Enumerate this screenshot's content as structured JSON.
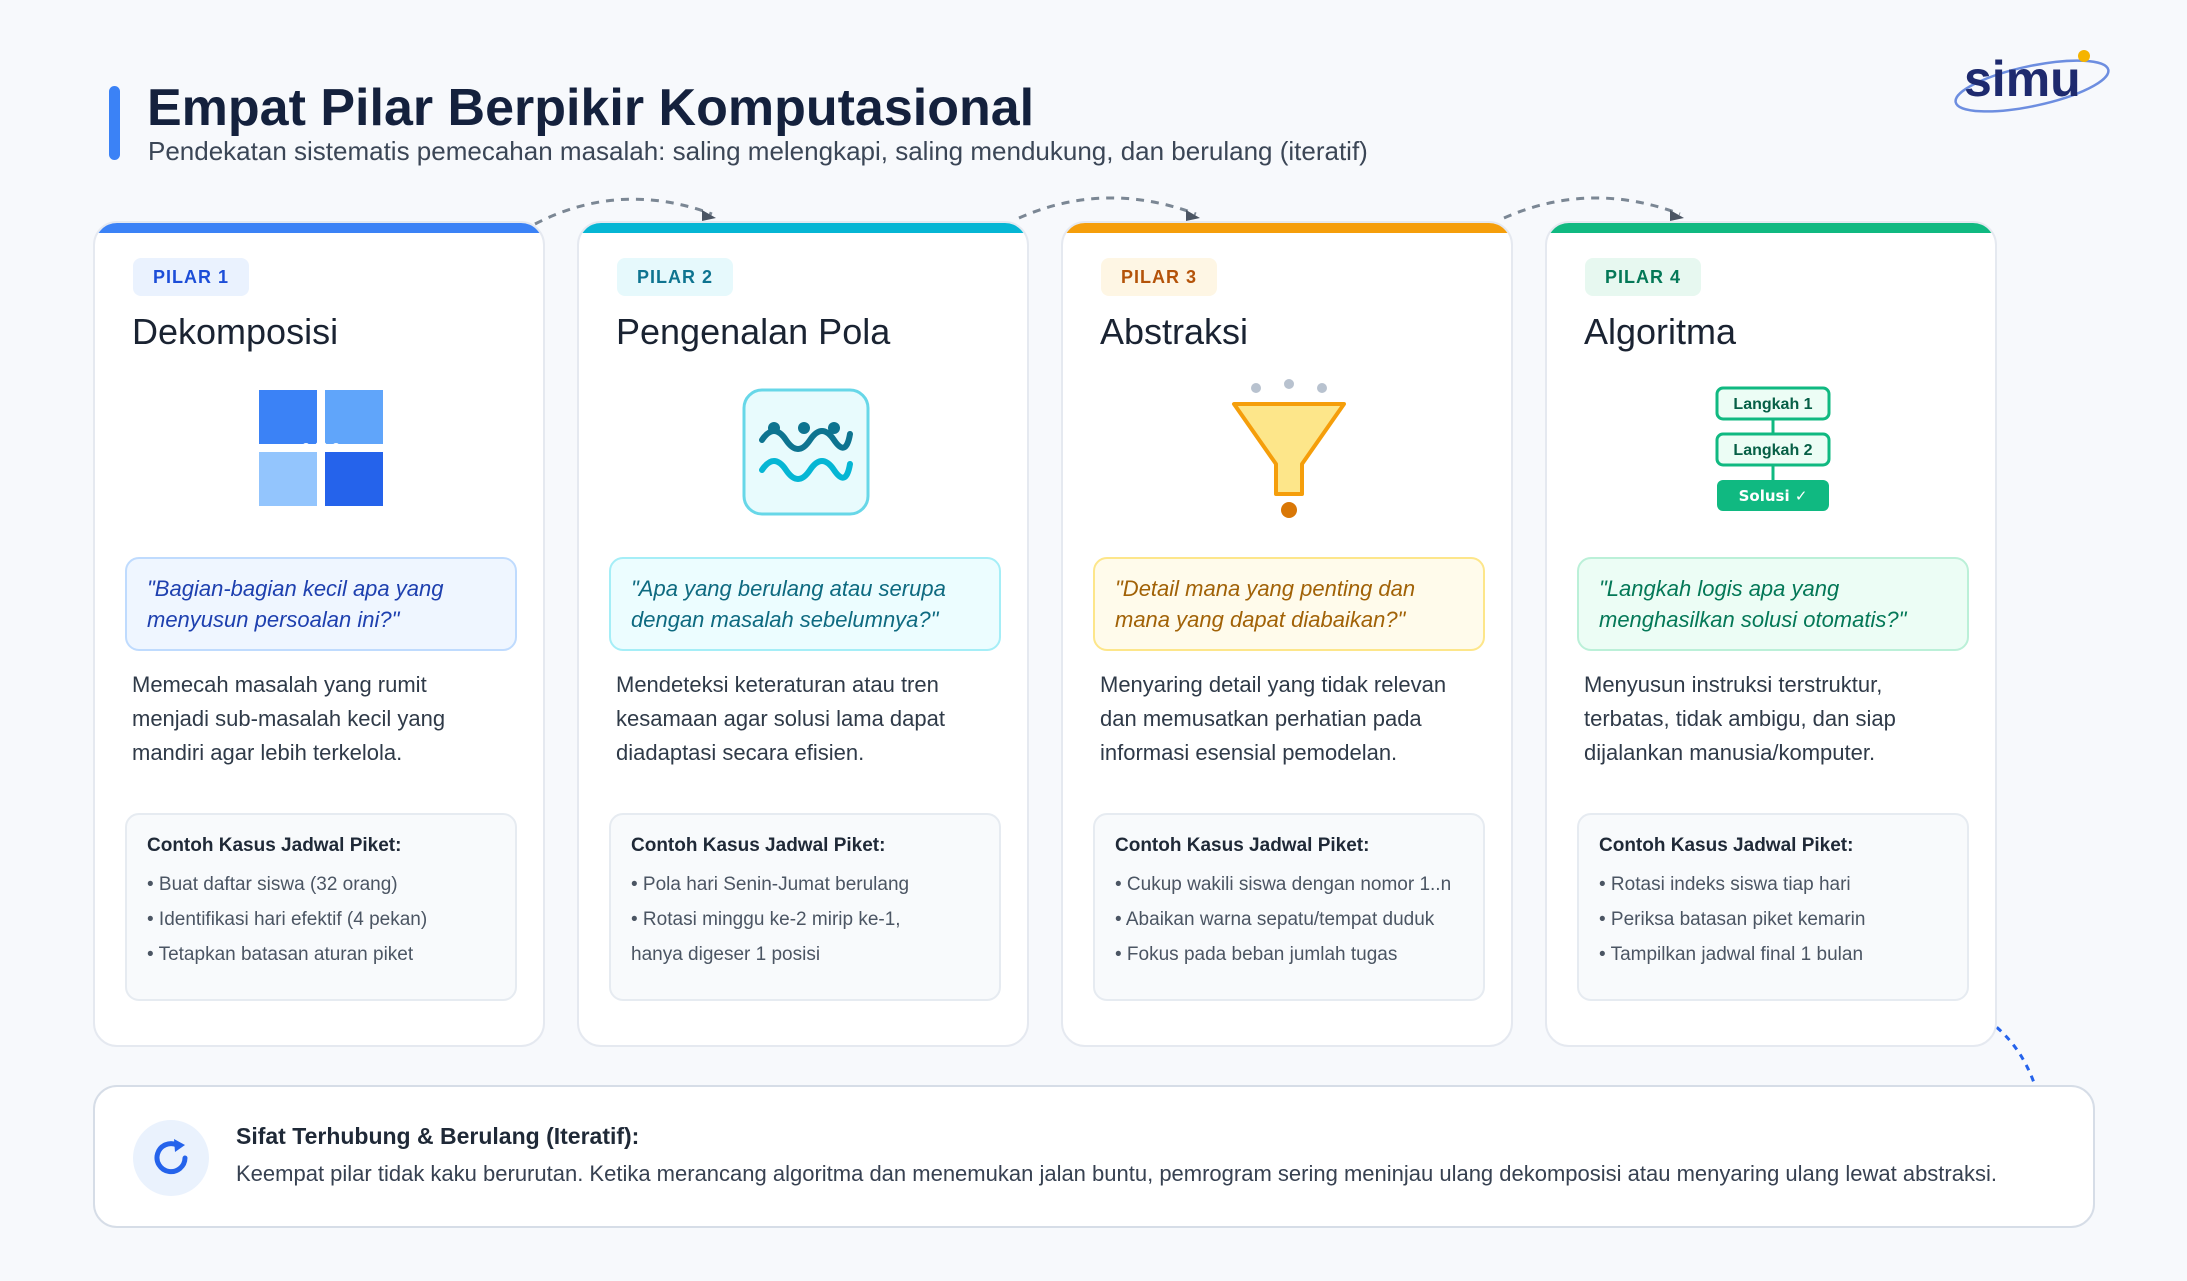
{
  "header": {
    "title": "Empat Pilar Berpikir Komputasional",
    "subtitle": "Pendekatan sistematis pemecahan masalah: saling melengkapi, saling mendukung, dan berulang (iteratif)",
    "logo_text": "simu"
  },
  "pillars": [
    {
      "tag": "PILAR 1",
      "title": "Dekomposisi",
      "icon": "decomposition-blocks-icon",
      "accent": "#3b82f6",
      "quote_lines": [
        "\"Bagian-bagian kecil apa yang",
        "menyusun persoalan ini?\""
      ],
      "desc_lines": [
        "Memecah masalah yang rumit",
        "menjadi sub-masalah kecil yang",
        "mandiri agar lebih terkelola."
      ],
      "example_title": "Contoh Kasus Jadwal Piket:",
      "examples": [
        "• Buat daftar siswa (32 orang)",
        "• Identifikasi hari efektif (4 pekan)",
        "• Tetapkan batasan aturan piket"
      ]
    },
    {
      "tag": "PILAR 2",
      "title": "Pengenalan Pola",
      "icon": "wave-pattern-icon",
      "accent": "#06b6d4",
      "quote_lines": [
        "\"Apa yang berulang atau serupa",
        "dengan masalah sebelumnya?\""
      ],
      "desc_lines": [
        "Mendeteksi keteraturan atau tren",
        "kesamaan agar solusi lama dapat",
        "diadaptasi secara efisien."
      ],
      "example_title": "Contoh Kasus Jadwal Piket:",
      "examples": [
        "• Pola hari Senin-Jumat berulang",
        "• Rotasi minggu ke-2 mirip ke-1,",
        "hanya digeser 1 posisi"
      ]
    },
    {
      "tag": "PILAR 3",
      "title": "Abstraksi",
      "icon": "funnel-icon",
      "accent": "#f59e0b",
      "quote_lines": [
        "\"Detail mana yang penting dan",
        "mana yang dapat diabaikan?\""
      ],
      "desc_lines": [
        "Menyaring detail yang tidak relevan",
        "dan memusatkan perhatian pada",
        "informasi esensial pemodelan."
      ],
      "example_title": "Contoh Kasus Jadwal Piket:",
      "examples": [
        "• Cukup wakili siswa dengan nomor 1..n",
        "• Abaikan warna sepatu/tempat duduk",
        "• Fokus pada beban jumlah tugas"
      ]
    },
    {
      "tag": "PILAR 4",
      "title": "Algoritma",
      "icon": "steps-flow-icon",
      "accent": "#10b981",
      "quote_lines": [
        "\"Langkah logis apa yang",
        "menghasilkan solusi otomatis?\""
      ],
      "desc_lines": [
        "Menyusun instruksi terstruktur,",
        "terbatas, tidak ambigu, dan siap",
        "dijalankan manusia/komputer."
      ],
      "example_title": "Contoh Kasus Jadwal Piket:",
      "examples": [
        "• Rotasi indeks siswa tiap hari",
        "• Periksa batasan piket kemarin",
        "• Tampilkan jadwal final 1 bulan"
      ],
      "steps": [
        "Langkah 1",
        "Langkah 2",
        "Solusi ✓"
      ]
    }
  ],
  "footer": {
    "icon": "cycle-icon",
    "title": "Sifat Terhubung & Berulang (Iteratif):",
    "text": "Keempat pilar tidak kaku berurutan. Ketika merancang algoritma dan menemukan jalan buntu, pemrogram sering meninjau ulang dekomposisi atau menyaring ulang lewat abstraksi."
  }
}
